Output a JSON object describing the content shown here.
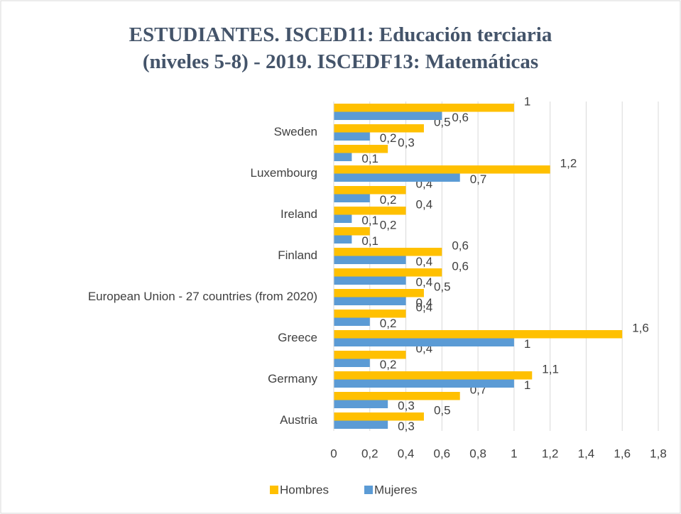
{
  "chart_data": {
    "type": "bar",
    "orientation": "horizontal",
    "title": "ESTUDIANTES. ISCED11: Educación terciaria (niveles 5-8) - 2019. ISCEDF13: Matemáticas",
    "categories": [
      "Austria",
      null,
      "Germany",
      null,
      "Greece",
      null,
      "European Union - 27 countries (from 2020)",
      null,
      "Finland",
      null,
      "Ireland",
      null,
      "Luxembourg",
      null,
      "Sweden",
      null
    ],
    "series": [
      {
        "name": "Hombres",
        "color": "#ffc000",
        "values": [
          0.5,
          0.7,
          1.1,
          0.4,
          1.6,
          0.4,
          0.5,
          0.6,
          0.6,
          0.2,
          0.4,
          0.4,
          1.2,
          0.3,
          0.5,
          1
        ],
        "value_labels": [
          "0,5",
          "0,7",
          "1,1",
          "0,4",
          "1,6",
          "0,4",
          "0,5",
          "0,6",
          "0,6",
          "0,2",
          "0,4",
          "0,4",
          "1,2",
          "0,3",
          "0,5",
          "1"
        ]
      },
      {
        "name": "Mujeres",
        "color": "#5b9bd5",
        "values": [
          0.3,
          0.3,
          1,
          0.2,
          1,
          0.2,
          0.4,
          0.4,
          0.4,
          0.1,
          0.1,
          0.2,
          0.7,
          0.1,
          0.2,
          0.6
        ],
        "value_labels": [
          "0,3",
          "0,3",
          "1",
          "0,2",
          "1",
          "0,2",
          "0,4",
          "0,4",
          "0,4",
          "0,1",
          "0,1",
          "0,2",
          "0,7",
          "0,1",
          "0,2",
          "0,6"
        ]
      }
    ],
    "xlim": [
      0,
      1.8
    ],
    "xticks": [
      0,
      {
        "value": 0.2,
        "label": "0,2"
      },
      {
        "value": 0.4,
        "label": "0,4"
      },
      {
        "value": 0.6,
        "label": "0,6"
      },
      {
        "value": 0.8,
        "label": "0,8"
      },
      1,
      {
        "value": 1.2,
        "label": "1,2"
      },
      {
        "value": 1.4,
        "label": "1,4"
      },
      {
        "value": 1.6,
        "label": "1,6"
      },
      {
        "value": 1.8,
        "label": "1,8"
      }
    ],
    "grid": true,
    "legend": "bottom"
  }
}
